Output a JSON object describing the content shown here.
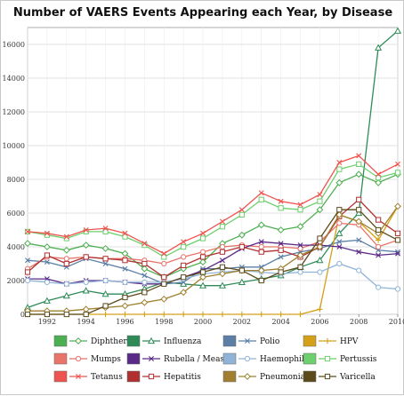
{
  "chart_data": {
    "type": "line",
    "title": "Number of VAERS Events Appearing each Year, by Disease",
    "xlabel": "",
    "ylabel": "",
    "xlim": [
      1991,
      2010
    ],
    "ylim": [
      0,
      17000
    ],
    "x_ticks": [
      1992,
      1994,
      1996,
      1998,
      2000,
      2002,
      2004,
      2006,
      2008,
      2010
    ],
    "y_ticks": [
      0,
      2000,
      4000,
      6000,
      8000,
      10000,
      12000,
      14000,
      16000
    ],
    "grid": true,
    "legend_position": "bottom",
    "x": [
      1991,
      1992,
      1993,
      1994,
      1995,
      1996,
      1997,
      1998,
      1999,
      2000,
      2001,
      2002,
      2003,
      2004,
      2005,
      2006,
      2007,
      2008,
      2009,
      2010
    ],
    "series": [
      {
        "name": "Diphtheria",
        "color": "#4caf50",
        "marker": "diamond",
        "values": [
          4200,
          4000,
          3800,
          4100,
          3900,
          3600,
          2700,
          2200,
          2700,
          3100,
          4200,
          4700,
          5300,
          5000,
          5200,
          6200,
          7800,
          8300,
          7800,
          8300
        ]
      },
      {
        "name": "Influenza",
        "color": "#2e8b57",
        "marker": "triangle",
        "values": [
          400,
          800,
          1100,
          1400,
          1200,
          1200,
          1500,
          1900,
          1800,
          1700,
          1700,
          1900,
          2100,
          2300,
          2800,
          3200,
          4800,
          6000,
          15800,
          16800
        ]
      },
      {
        "name": "Polio",
        "color": "#5b7fa6",
        "marker": "x",
        "values": [
          3200,
          3100,
          2800,
          3300,
          3000,
          2700,
          2300,
          1800,
          1900,
          2700,
          2700,
          2800,
          2800,
          3400,
          3700,
          3900,
          4300,
          4400,
          3800,
          3700
        ]
      },
      {
        "name": "HPV",
        "color": "#d4a017",
        "marker": "plus",
        "values": [
          0,
          0,
          0,
          0,
          0,
          0,
          0,
          0,
          0,
          0,
          0,
          0,
          0,
          0,
          0,
          300,
          5900,
          5500,
          4400,
          6400
        ]
      },
      {
        "name": "Mumps",
        "color": "#e8746a",
        "marker": "circle",
        "values": [
          2700,
          3400,
          3300,
          3400,
          3300,
          3300,
          3200,
          3000,
          3400,
          3700,
          4000,
          4100,
          4000,
          4000,
          3900,
          4300,
          5400,
          5300,
          4000,
          4400
        ]
      },
      {
        "name": "Rubella / Measles",
        "color": "#5a2a86",
        "marker": "x",
        "values": [
          2100,
          2100,
          1800,
          2000,
          2000,
          1900,
          1800,
          1800,
          2200,
          2600,
          3200,
          3900,
          4300,
          4200,
          4100,
          4100,
          4000,
          3700,
          3500,
          3600
        ]
      },
      {
        "name": "Haemophilus",
        "color": "#8fb4d8",
        "marker": "circle",
        "values": [
          2000,
          1900,
          1800,
          1900,
          2000,
          1900,
          1900,
          1900,
          2100,
          2400,
          2500,
          2600,
          2500,
          2400,
          2500,
          2500,
          3000,
          2600,
          1600,
          1500
        ]
      },
      {
        "name": "Pertussis",
        "color": "#6dd06d",
        "marker": "square",
        "values": [
          4900,
          4700,
          4500,
          4900,
          4900,
          4600,
          4100,
          3400,
          4000,
          4500,
          5200,
          5900,
          6800,
          6300,
          6200,
          6700,
          8600,
          8900,
          8100,
          8400
        ]
      },
      {
        "name": "Tetanus",
        "color": "#ef5350",
        "marker": "x",
        "values": [
          4900,
          4800,
          4600,
          5000,
          5100,
          4800,
          4200,
          3600,
          4300,
          4800,
          5500,
          6200,
          7200,
          6700,
          6500,
          7100,
          9000,
          9400,
          8300,
          8900
        ]
      },
      {
        "name": "Hepatitis",
        "color": "#b03030",
        "marker": "square",
        "values": [
          2500,
          3500,
          3000,
          3400,
          3300,
          3200,
          3000,
          2200,
          2900,
          3400,
          3700,
          4000,
          3700,
          3800,
          3400,
          4000,
          5800,
          6800,
          5600,
          4800
        ]
      },
      {
        "name": "Pneumonia",
        "color": "#a08030",
        "marker": "diamond",
        "values": [
          200,
          200,
          200,
          300,
          400,
          500,
          700,
          900,
          1300,
          2200,
          2400,
          2600,
          2600,
          2700,
          3500,
          4000,
          5900,
          5500,
          4800,
          6400
        ]
      },
      {
        "name": "Varicella",
        "color": "#5c4a1a",
        "marker": "square",
        "values": [
          0,
          0,
          0,
          0,
          500,
          1000,
          1300,
          1800,
          2200,
          2500,
          2800,
          2600,
          2000,
          2500,
          2800,
          4500,
          6200,
          6200,
          5000,
          4400
        ]
      }
    ]
  }
}
